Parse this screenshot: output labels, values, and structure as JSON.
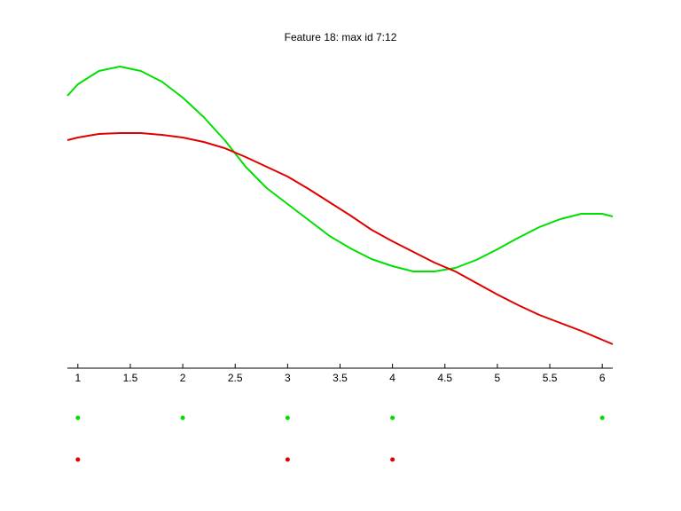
{
  "chart_data": {
    "type": "line",
    "title": "Feature 18: max id 7:12",
    "x": [
      0.9,
      1.0,
      1.2,
      1.4,
      1.6,
      1.8,
      2.0,
      2.2,
      2.4,
      2.5,
      2.6,
      2.8,
      3.0,
      3.2,
      3.4,
      3.6,
      3.8,
      4.0,
      4.2,
      4.4,
      4.6,
      4.8,
      5.0,
      5.2,
      5.4,
      5.6,
      5.8,
      6.0,
      6.1
    ],
    "series": [
      {
        "color": "#00e000",
        "values": [
          307,
          320,
          335,
          340,
          335,
          323,
          305,
          283,
          257,
          242,
          227,
          203,
          185,
          167,
          149,
          135,
          123,
          115,
          109,
          109,
          113,
          122,
          134,
          147,
          159,
          168,
          174,
          174,
          171
        ]
      },
      {
        "color": "#e00000",
        "values": [
          257,
          260,
          264,
          265,
          265,
          263,
          260,
          255,
          248,
          243,
          238,
          227,
          216,
          202,
          187,
          172,
          156,
          143,
          131,
          119,
          109,
          96,
          83,
          71,
          60,
          51,
          42,
          32,
          27
        ]
      }
    ],
    "dot_rows": [
      {
        "color": "#00e000",
        "x": [
          1,
          2,
          3,
          4,
          6
        ]
      },
      {
        "color": "#e00000",
        "x": [
          1,
          3,
          4
        ]
      }
    ],
    "xlim": [
      0.9,
      6.1
    ],
    "ylim": [
      0,
      355
    ],
    "xticks": [
      1,
      1.5,
      2,
      2.5,
      3,
      3.5,
      4,
      4.5,
      5,
      5.5,
      6
    ]
  }
}
